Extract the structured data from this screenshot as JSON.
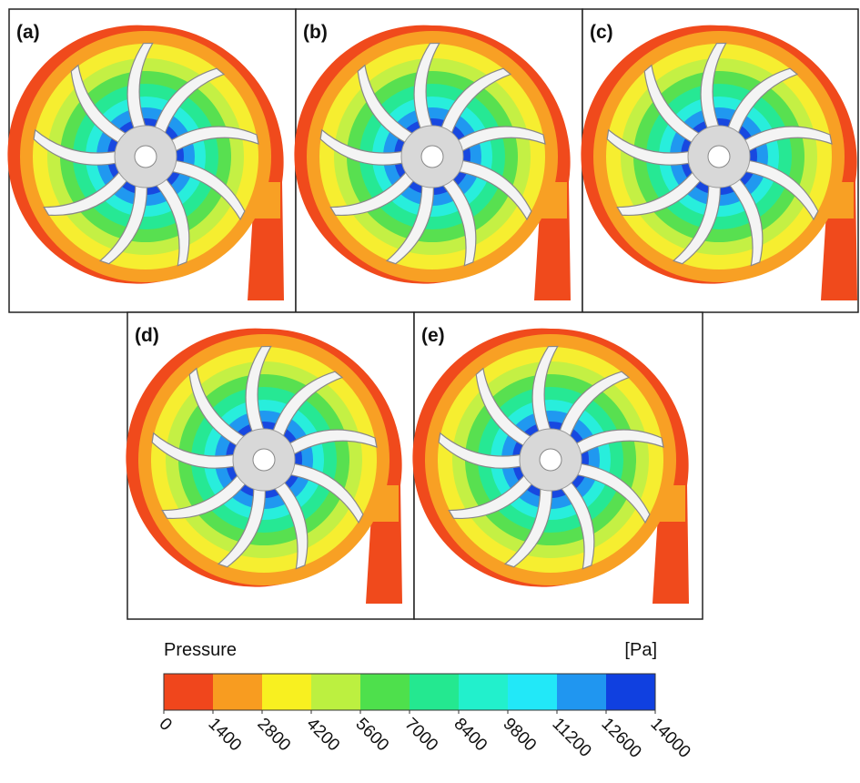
{
  "panels": [
    {
      "label": "(a)"
    },
    {
      "label": "(b)"
    },
    {
      "label": "(c)"
    },
    {
      "label": "(d)"
    },
    {
      "label": "(e)"
    }
  ],
  "colorbar": {
    "title": "Pressure",
    "unit": "[Pa]",
    "ticks": [
      0,
      1400,
      2800,
      4200,
      5600,
      7000,
      8400,
      9800,
      11200,
      12600,
      14000
    ],
    "colors": [
      "#f0461c",
      "#f89c20",
      "#f8f020",
      "#bcf040",
      "#4ee04c",
      "#24e890",
      "#22f0cc",
      "#22e8f8",
      "#2096f0",
      "#1040e0"
    ]
  }
}
